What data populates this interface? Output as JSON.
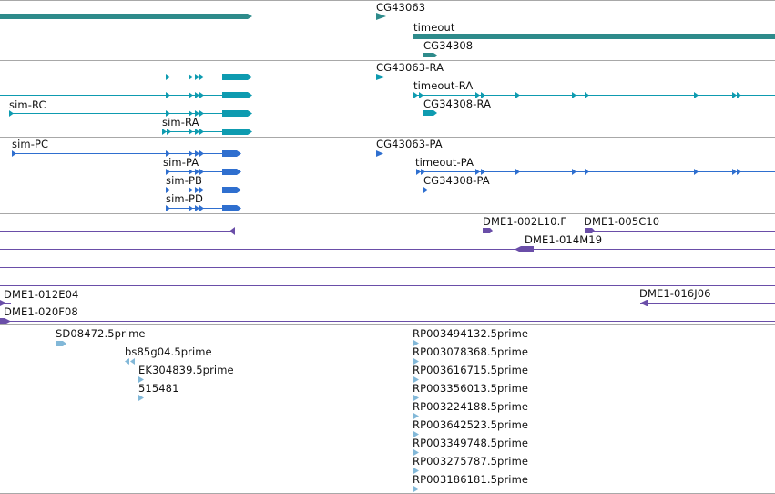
{
  "colors": {
    "gene": "#2e8b8b",
    "rna": "#0e9bb0",
    "protein": "#2f6fcf",
    "clone": "#6a4ea8",
    "est": "#82b8d8"
  },
  "gene_track": {
    "labels": [
      "CG43063",
      "timeout",
      "CG34308"
    ]
  },
  "rna_track": {
    "labels": [
      "CG43063-RA",
      "timeout-RA",
      "sim-RC",
      "CG34308-RA",
      "sim-RA"
    ]
  },
  "protein_track": {
    "labels": [
      "sim-PC",
      "CG43063-PA",
      "sim-PA",
      "timeout-PA",
      "sim-PB",
      "CG34308-PA",
      "sim-PD"
    ]
  },
  "clone_track": {
    "labels": [
      "DME1-002L10.F",
      "DME1-005C10",
      "DME1-014M19"
    ]
  },
  "clone_track2": {
    "labels": [
      "DME1-012E04",
      "DME1-016J06",
      "DME1-020F08"
    ]
  },
  "est_track": {
    "labels": [
      "SD08472.5prime",
      "bs85g04.5prime",
      "EK304839.5prime",
      "515481",
      "RP003494132.5prime",
      "RP003078368.5prime",
      "RP003616715.5prime",
      "RP003356013.5prime",
      "RP003224188.5prime",
      "RP003642523.5prime",
      "RP003349748.5prime",
      "RP003275787.5prime",
      "RP003186181.5prime"
    ]
  }
}
